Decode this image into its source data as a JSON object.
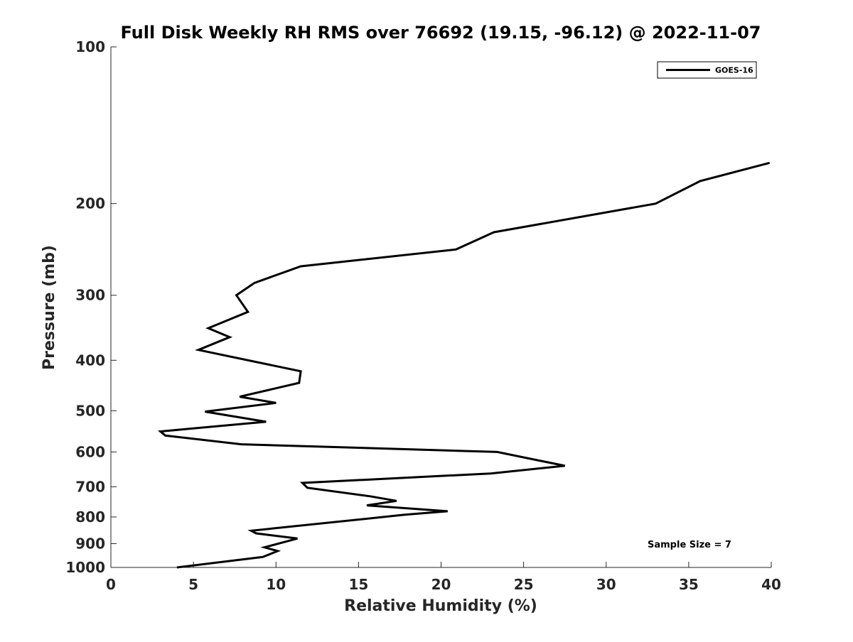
{
  "chart_data": {
    "type": "line",
    "title": "Full Disk Weekly RH RMS over 76692 (19.15, -96.12) @ 2022-11-07",
    "xlabel": "Relative Humidity (%)",
    "ylabel": "Pressure (mb)",
    "xlim": [
      0,
      40
    ],
    "ylim": [
      100,
      1000
    ],
    "y_scale": "log",
    "y_inverted": true,
    "x_ticks": [
      0,
      5,
      10,
      15,
      20,
      25,
      30,
      35,
      40
    ],
    "y_ticks": [
      100,
      200,
      300,
      400,
      500,
      600,
      700,
      800,
      900,
      1000
    ],
    "grid": false,
    "legend_position": "top-right",
    "series": [
      {
        "name": "GOES-16",
        "color": "#000000",
        "x": [
          4.0,
          9.2,
          10.1,
          9.3,
          11.3,
          8.8,
          8.5,
          17.8,
          20.4,
          15.5,
          17.3,
          15.7,
          11.9,
          11.6,
          23.0,
          27.5,
          23.4,
          7.9,
          3.3,
          3.0,
          9.4,
          5.7,
          10.0,
          7.8,
          11.4,
          11.5,
          5.3,
          7.2,
          5.9,
          8.3,
          7.6,
          8.7,
          11.5,
          20.9,
          23.2,
          33.0,
          35.7,
          39.9
        ],
        "y": [
          1000,
          955,
          930,
          915,
          880,
          860,
          850,
          792,
          780,
          760,
          745,
          730,
          703,
          688,
          660,
          638,
          600,
          580,
          558,
          548,
          525,
          502,
          483,
          470,
          442,
          420,
          382,
          361,
          347,
          323,
          300,
          284,
          264,
          245,
          227,
          200,
          181,
          167
        ]
      }
    ],
    "annotations": [
      "Sample Size = 7"
    ]
  }
}
